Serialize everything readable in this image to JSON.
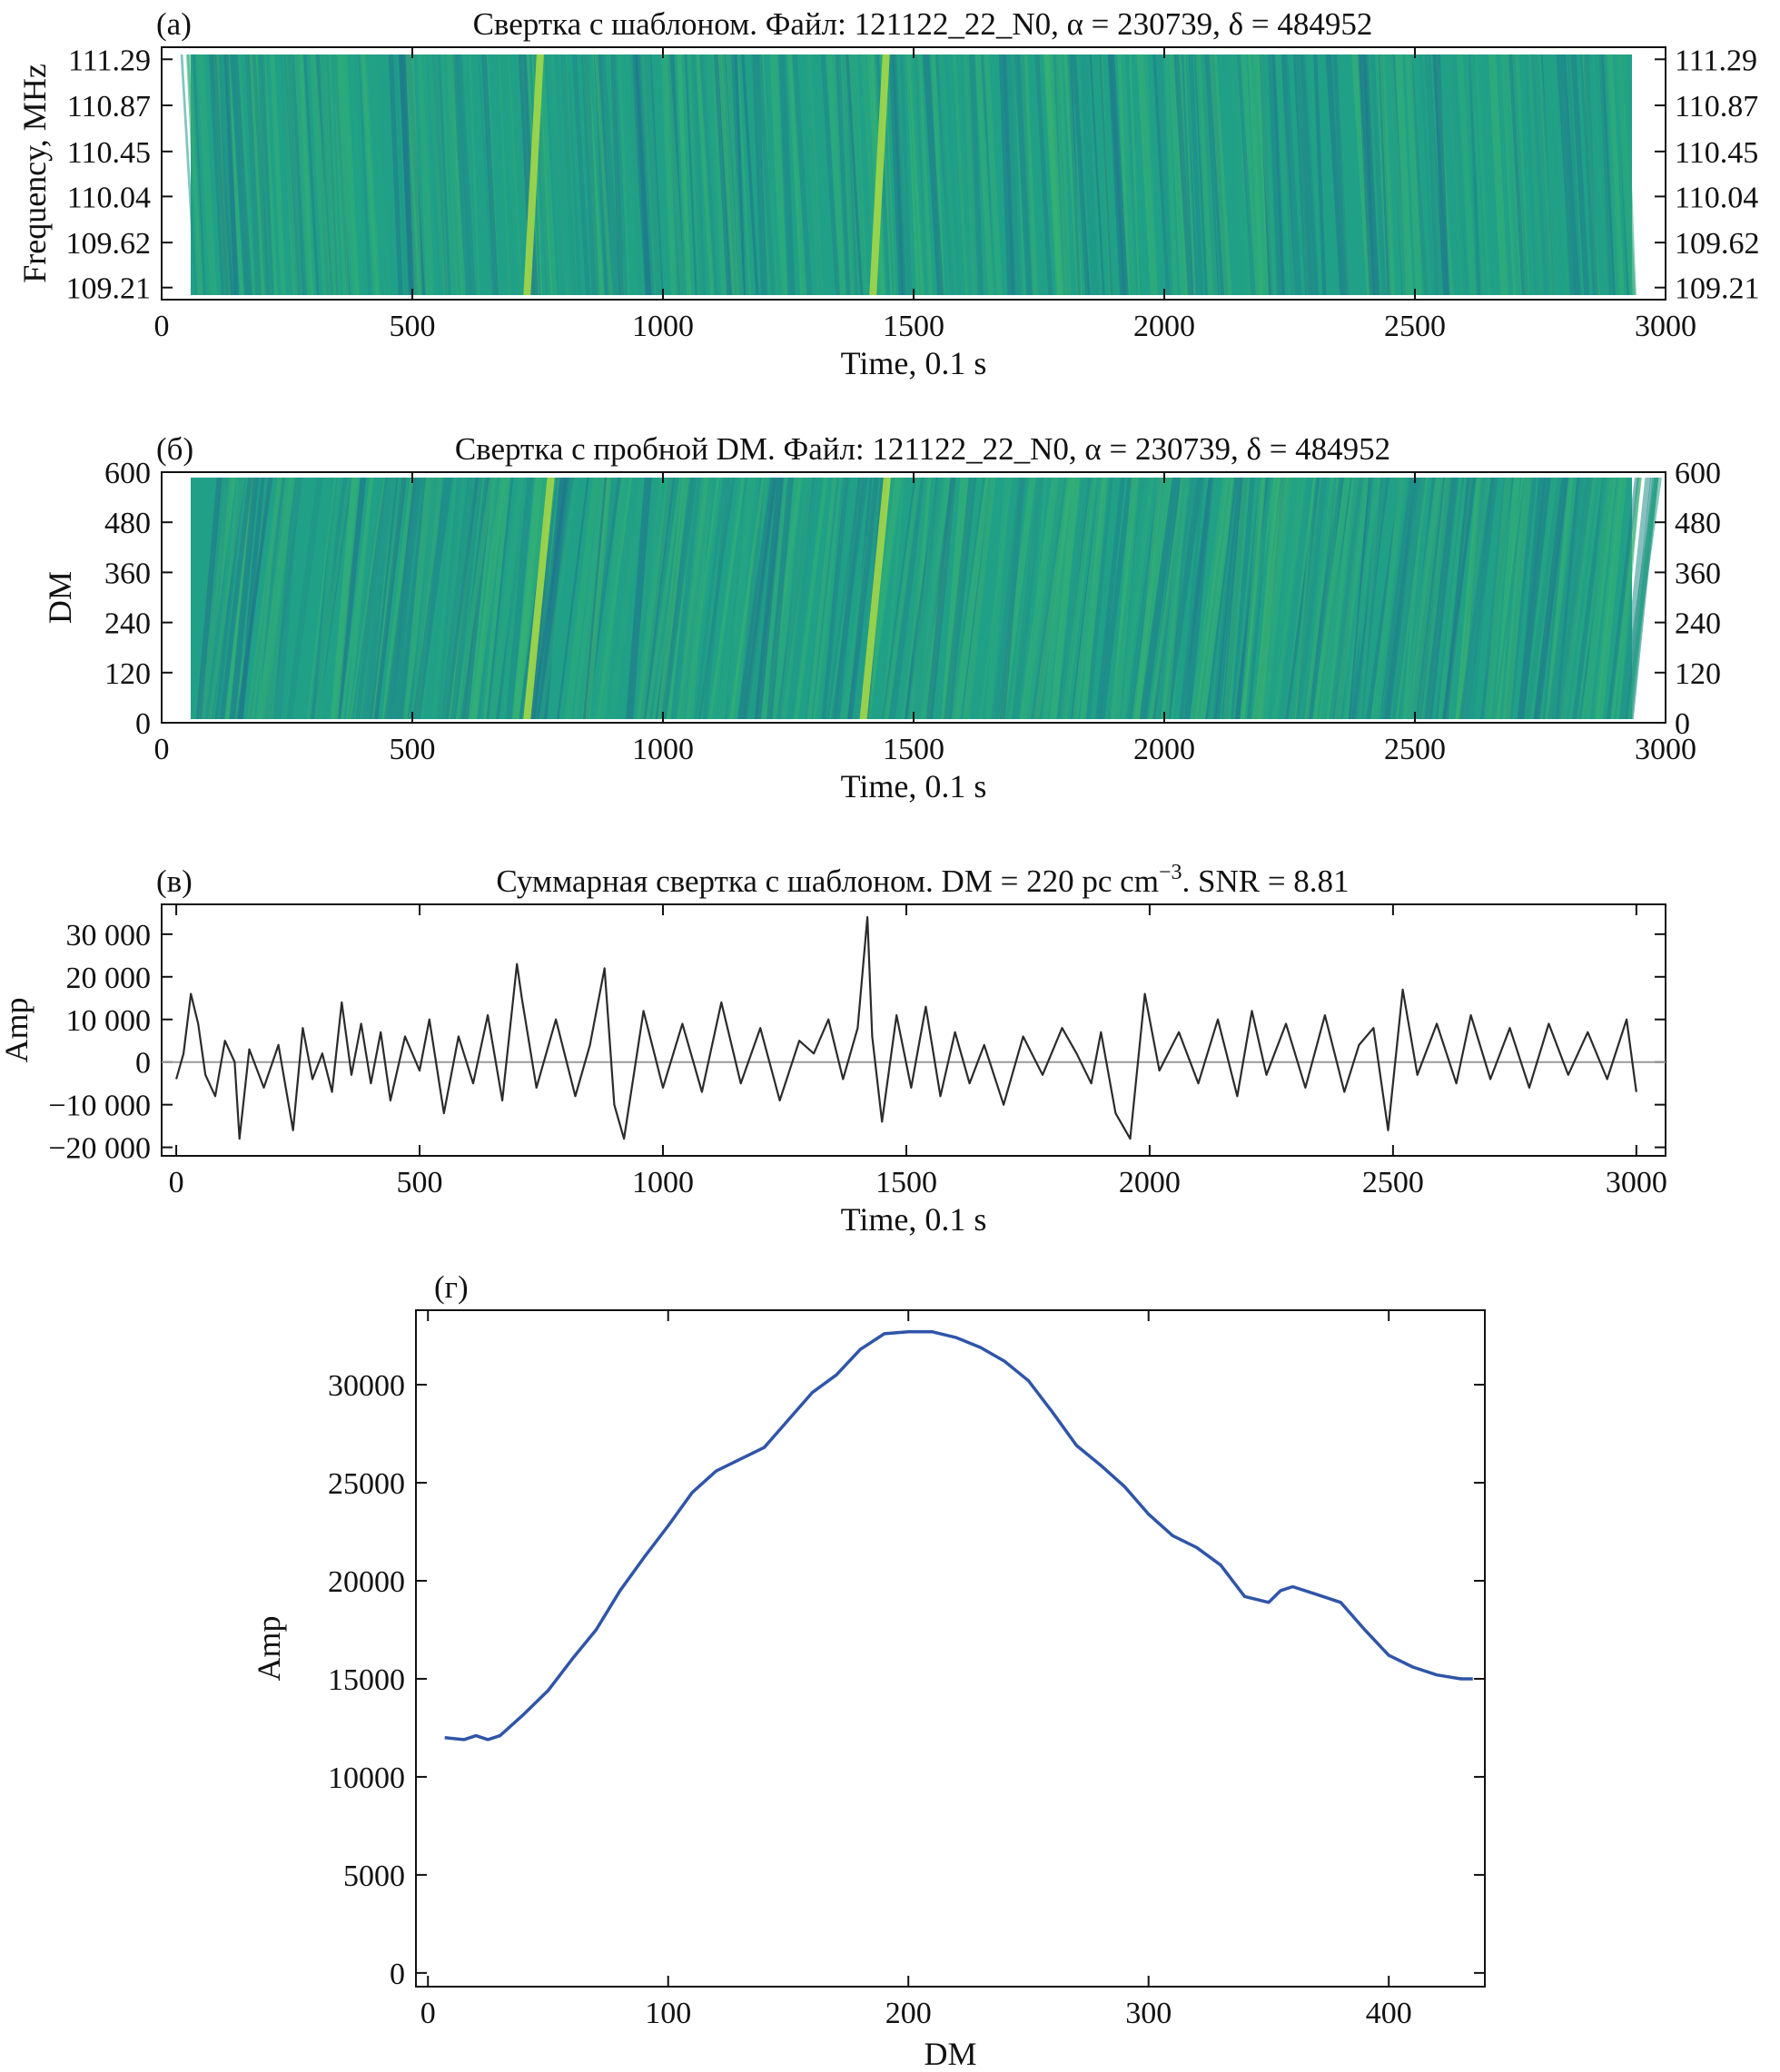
{
  "chart_data": [
    {
      "panel": "(а)",
      "type": "heatmap",
      "title": "Свертка с шаблоном. Файл: 121122_22_N0, α = 230739, δ = 484952",
      "xlabel": "Time, 0.1 s",
      "ylabel": "Frequency, MHz",
      "xlim": [
        0,
        3000
      ],
      "ylim": [
        109.1,
        111.4
      ],
      "xticks": [
        0,
        500,
        1000,
        1500,
        2000,
        2500,
        3000
      ],
      "yticks": [
        109.21,
        109.62,
        110.04,
        110.45,
        110.87,
        111.29
      ],
      "ytick_labels": [
        "109.21",
        "109.62",
        "110.04",
        "110.45",
        "110.87",
        "111.29"
      ],
      "colormap": [
        "#2a4a8c",
        "#1f7a8c",
        "#20a387",
        "#3cb66c",
        "#bde33a"
      ],
      "notes": "bright dispersed streaks near t ≈ 700 and t ≈ 1420"
    },
    {
      "panel": "(б)",
      "type": "heatmap",
      "title": "Свертка с пробной DM. Файл: 121122_22_N0, α = 230739, δ = 484952",
      "xlabel": "Time, 0.1 s",
      "ylabel": "DM",
      "xlim": [
        0,
        3000
      ],
      "ylim": [
        0,
        600
      ],
      "xticks": [
        0,
        500,
        1000,
        1500,
        2000,
        2500,
        3000
      ],
      "yticks": [
        0,
        120,
        240,
        360,
        480,
        600
      ],
      "ytick_labels": [
        "0",
        "120",
        "240",
        "360",
        "480",
        "600"
      ],
      "colormap": [
        "#2a4a8c",
        "#1f7a8c",
        "#20a387",
        "#3cb66c",
        "#bde33a"
      ],
      "notes": "diagonal streaks; brightest near t ≈ 700 and t ≈ 1400"
    },
    {
      "panel": "(в)",
      "type": "line",
      "title": "Суммарная свертка с шаблоном. DM = 220 pc cm",
      "title_sup": "−3",
      "title_tail": ". SNR = 8.81",
      "xlabel": "Time, 0.1 s",
      "ylabel": "Amp",
      "xlim": [
        -30,
        3060
      ],
      "ylim": [
        -22000,
        37000
      ],
      "xticks": [
        0,
        500,
        1000,
        1500,
        2000,
        2500,
        3000
      ],
      "yticks": [
        -20000,
        -10000,
        0,
        10000,
        20000,
        30000
      ],
      "ytick_labels": [
        "−20 000",
        "−10 000",
        "0",
        "10 000",
        "20 000",
        "30 000"
      ],
      "zero_line": true,
      "series": [
        {
          "color": "#2b2b2b",
          "x": [
            0,
            15,
            30,
            45,
            60,
            80,
            100,
            120,
            130,
            150,
            180,
            210,
            240,
            260,
            280,
            300,
            320,
            340,
            360,
            380,
            400,
            420,
            440,
            470,
            500,
            520,
            550,
            580,
            610,
            640,
            670,
            700,
            710,
            740,
            780,
            820,
            850,
            880,
            900,
            920,
            960,
            1000,
            1040,
            1080,
            1120,
            1160,
            1200,
            1240,
            1280,
            1310,
            1340,
            1370,
            1400,
            1420,
            1430,
            1450,
            1480,
            1510,
            1540,
            1570,
            1600,
            1630,
            1660,
            1700,
            1740,
            1780,
            1820,
            1850,
            1880,
            1900,
            1930,
            1960,
            1990,
            2020,
            2060,
            2100,
            2140,
            2180,
            2210,
            2240,
            2280,
            2320,
            2360,
            2400,
            2430,
            2460,
            2490,
            2520,
            2550,
            2590,
            2630,
            2660,
            2700,
            2740,
            2780,
            2820,
            2860,
            2900,
            2940,
            2980,
            3000
          ],
          "values": [
            -4000,
            2000,
            16000,
            9000,
            -3000,
            -8000,
            5000,
            0,
            -18000,
            3000,
            -6000,
            4000,
            -16000,
            8000,
            -4000,
            2000,
            -7000,
            14000,
            -3000,
            9000,
            -5000,
            7000,
            -9000,
            6000,
            -2000,
            10000,
            -12000,
            6000,
            -5000,
            11000,
            -9000,
            23000,
            15000,
            -6000,
            10000,
            -8000,
            4000,
            22000,
            -10000,
            -18000,
            12000,
            -6000,
            9000,
            -7000,
            14000,
            -5000,
            8000,
            -9000,
            5000,
            2000,
            10000,
            -4000,
            8000,
            34000,
            6000,
            -14000,
            11000,
            -6000,
            13000,
            -8000,
            7000,
            -5000,
            4000,
            -10000,
            6000,
            -3000,
            8000,
            2000,
            -5000,
            7000,
            -12000,
            -18000,
            16000,
            -2000,
            7000,
            -5000,
            10000,
            -8000,
            12000,
            -3000,
            9000,
            -6000,
            11000,
            -7000,
            4000,
            8000,
            -16000,
            17000,
            -3000,
            9000,
            -5000,
            11000,
            -4000,
            8000,
            -6000,
            9000,
            -3000,
            7000,
            -4000,
            10000,
            -7000
          ]
        }
      ]
    },
    {
      "panel": "(г)",
      "type": "line",
      "xlabel": "DM",
      "ylabel": "Amp",
      "xlim": [
        -5,
        440
      ],
      "ylim": [
        -700,
        33800
      ],
      "xticks": [
        0,
        100,
        200,
        300,
        400
      ],
      "yticks": [
        0,
        5000,
        10000,
        15000,
        20000,
        25000,
        30000
      ],
      "ytick_labels": [
        "0",
        "5000",
        "10000",
        "15000",
        "20000",
        "25000",
        "30000"
      ],
      "series": [
        {
          "color": "#2f55a8",
          "x": [
            7,
            15,
            20,
            25,
            30,
            40,
            50,
            60,
            70,
            80,
            90,
            100,
            110,
            120,
            130,
            140,
            150,
            160,
            170,
            180,
            190,
            200,
            210,
            220,
            230,
            240,
            250,
            260,
            270,
            280,
            290,
            300,
            310,
            320,
            330,
            340,
            350,
            355,
            360,
            370,
            380,
            390,
            400,
            410,
            420,
            430,
            435
          ],
          "values": [
            12000,
            11900,
            12100,
            11900,
            12100,
            13200,
            14400,
            16000,
            17500,
            19500,
            21200,
            22800,
            24500,
            25600,
            26200,
            26800,
            28200,
            29600,
            30500,
            31800,
            32600,
            32700,
            32700,
            32400,
            31900,
            31200,
            30200,
            28600,
            26900,
            25900,
            24800,
            23400,
            22300,
            21700,
            20800,
            19200,
            18900,
            19500,
            19700,
            19300,
            18900,
            17500,
            16200,
            15600,
            15200,
            15000,
            15000
          ]
        }
      ]
    }
  ]
}
